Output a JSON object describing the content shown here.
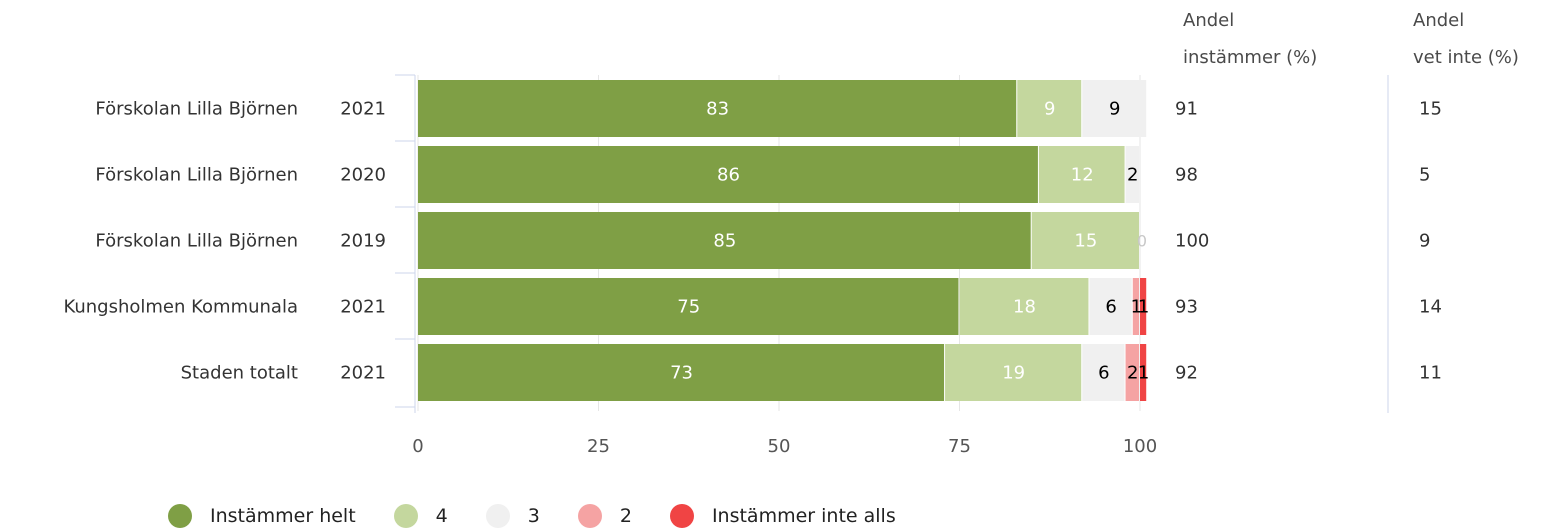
{
  "headers": {
    "andel_instammer_line1": "Andel",
    "andel_instammer_line2": "instämmer (%)",
    "andel_vet_inte_line1": "Andel",
    "andel_vet_inte_line2": "vet inte (%)"
  },
  "legend": [
    {
      "label": "Instämmer helt",
      "color": "#7f9f45"
    },
    {
      "label": "4",
      "color": "#c4d79e"
    },
    {
      "label": "3",
      "color": "#f0f0f0"
    },
    {
      "label": "2",
      "color": "#f5a3a3"
    },
    {
      "label": "Instämmer inte alls",
      "color": "#f04444"
    }
  ],
  "chart_data": {
    "type": "bar",
    "orientation": "horizontal",
    "stacked": true,
    "categories": [
      {
        "name": "Förskolan Lilla Björnen",
        "year": "2021"
      },
      {
        "name": "Förskolan Lilla Björnen",
        "year": "2020"
      },
      {
        "name": "Förskolan Lilla Björnen",
        "year": "2019"
      },
      {
        "name": "Kungsholmen Kommunala",
        "year": "2021"
      },
      {
        "name": "Staden totalt",
        "year": "2021"
      }
    ],
    "series": [
      {
        "name": "Instämmer helt",
        "color": "#7f9f45",
        "values": [
          83,
          86,
          85,
          75,
          73
        ]
      },
      {
        "name": "4",
        "color": "#c4d79e",
        "values": [
          9,
          12,
          15,
          18,
          19
        ]
      },
      {
        "name": "3",
        "color": "#f0f0f0",
        "values": [
          9,
          2,
          0,
          6,
          6
        ]
      },
      {
        "name": "2",
        "color": "#f5a3a3",
        "values": [
          0,
          0,
          0,
          1,
          2
        ]
      },
      {
        "name": "Instämmer inte alls",
        "color": "#f04444",
        "values": [
          0,
          0,
          0,
          1,
          1
        ]
      }
    ],
    "andel_instammer": [
      91,
      98,
      100,
      93,
      92
    ],
    "andel_vet_inte": [
      15,
      5,
      9,
      14,
      11
    ],
    "xlim": [
      0,
      100
    ],
    "xticks": [
      0,
      25,
      50,
      75,
      100
    ],
    "grid": true,
    "legend_position": "bottom"
  }
}
